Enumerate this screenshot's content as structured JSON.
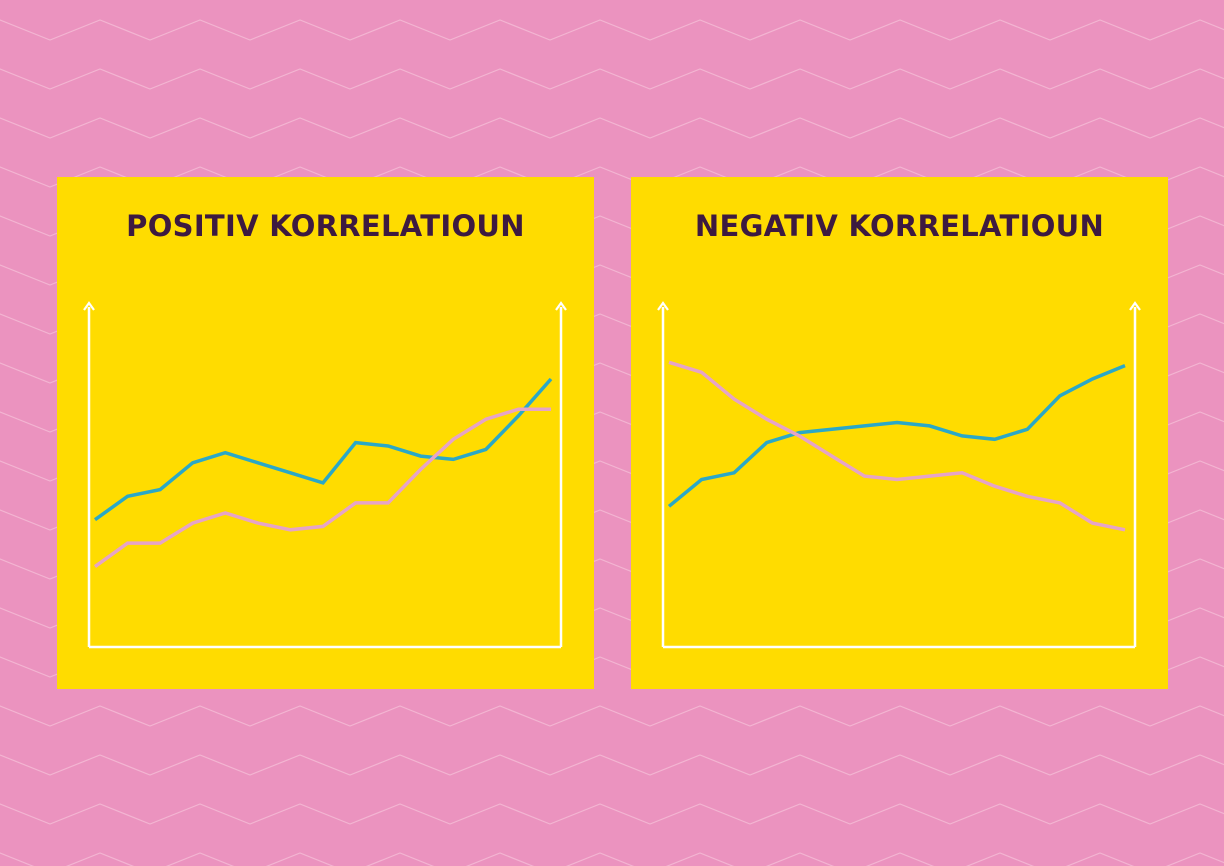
{
  "colors": {
    "background": "#eb93bf",
    "background_pattern": "#f3b5d2",
    "panel": "#ffdc00",
    "title": "#3d1a40",
    "axis": "#ffffff",
    "series_blue": "#2ba8c7",
    "series_pink": "#e6a4c7"
  },
  "chart_data": [
    {
      "type": "line",
      "title": "POSITIV KORRELATIOUN",
      "xlabel": "",
      "ylabel": "",
      "grid": false,
      "x": [
        0,
        1,
        2,
        3,
        4,
        5,
        6,
        7,
        8,
        9,
        10,
        11,
        12,
        13,
        14
      ],
      "xlim": [
        0,
        14
      ],
      "ylim": [
        0,
        100
      ],
      "series": [
        {
          "color": "#2ba8c7",
          "values": [
            38,
            45,
            47,
            55,
            58,
            55,
            52,
            49,
            61,
            60,
            57,
            56,
            59,
            69,
            80
          ]
        },
        {
          "color": "#e6a4c7",
          "values": [
            24,
            31,
            31,
            37,
            40,
            37,
            35,
            36,
            43,
            43,
            53,
            62,
            68,
            71,
            71
          ]
        }
      ]
    },
    {
      "type": "line",
      "title": "NEGATIV KORRELATIOUN",
      "xlabel": "",
      "ylabel": "",
      "grid": false,
      "x": [
        0,
        1,
        2,
        3,
        4,
        5,
        6,
        7,
        8,
        9,
        10,
        11,
        12,
        13,
        14
      ],
      "xlim": [
        0,
        14
      ],
      "ylim": [
        0,
        100
      ],
      "series": [
        {
          "color": "#2ba8c7",
          "values": [
            42,
            50,
            52,
            61,
            64,
            65,
            66,
            67,
            66,
            63,
            62,
            65,
            75,
            80,
            84
          ]
        },
        {
          "color": "#e6a4c7",
          "values": [
            85,
            82,
            74,
            68,
            63,
            57,
            51,
            50,
            51,
            52,
            48,
            45,
            43,
            37,
            35
          ]
        }
      ]
    }
  ]
}
